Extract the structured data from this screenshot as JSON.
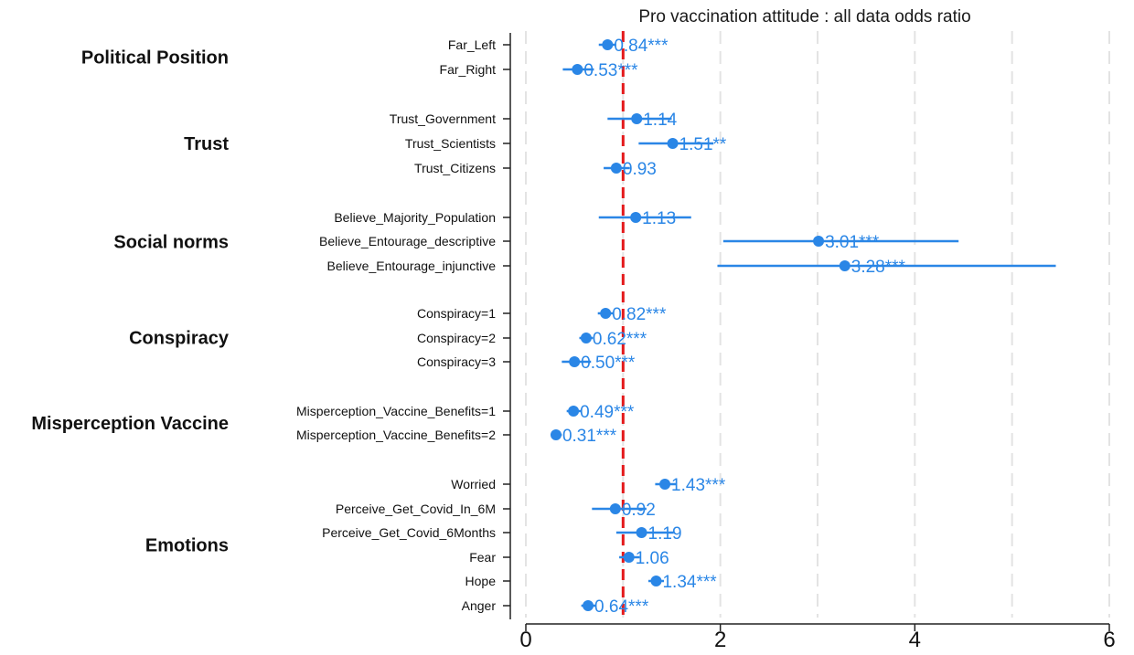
{
  "chart_data": {
    "type": "scatter",
    "title": "Pro vaccination attitude : all data odds ratio",
    "xlim": [
      0,
      6
    ],
    "xticks": [
      "0",
      "2",
      "4",
      "6"
    ],
    "xtick_values": [
      0,
      2,
      4,
      6
    ],
    "reference_line": 1,
    "grid": true,
    "colors": {
      "series": "#2a86e6",
      "reference": "#e41a1c",
      "grid": "#e3e3e3"
    },
    "groups": [
      {
        "name": "Political  Position",
        "rows": [
          0,
          1
        ]
      },
      {
        "name": "Trust",
        "rows": [
          2,
          3,
          4
        ]
      },
      {
        "name": "Social norms",
        "rows": [
          5,
          6,
          7
        ]
      },
      {
        "name": "Conspiracy",
        "rows": [
          8,
          9,
          10
        ]
      },
      {
        "name": "Misperception Vaccine",
        "rows": [
          11,
          12
        ]
      },
      {
        "name": "Emotions",
        "rows": [
          13,
          14,
          15,
          16,
          17,
          18
        ]
      }
    ],
    "rows": [
      {
        "label": "Far_Left",
        "value": 0.84,
        "ci": [
          0.75,
          0.93
        ],
        "text": "0.84***"
      },
      {
        "label": "Far_Right",
        "value": 0.53,
        "ci": [
          0.38,
          0.7
        ],
        "text": "0.53***"
      },
      {
        "label": "Trust_Government",
        "value": 1.14,
        "ci": [
          0.84,
          1.5
        ],
        "text": "1.14"
      },
      {
        "label": "Trust_Scientists",
        "value": 1.51,
        "ci": [
          1.16,
          1.93
        ],
        "text": "1.51**"
      },
      {
        "label": "Trust_Citizens",
        "value": 0.93,
        "ci": [
          0.8,
          1.07
        ],
        "text": "0.93"
      },
      {
        "label": "Believe_Majority_Population",
        "value": 1.13,
        "ci": [
          0.75,
          1.7
        ],
        "text": "1.13"
      },
      {
        "label": "Believe_Entourage_descriptive",
        "value": 3.01,
        "ci": [
          2.03,
          4.45
        ],
        "text": "3.01***"
      },
      {
        "label": "Believe_Entourage_injunctive",
        "value": 3.28,
        "ci": [
          1.97,
          5.45
        ],
        "text": "3.28***"
      },
      {
        "label": "Conspiracy=1",
        "value": 0.82,
        "ci": [
          0.74,
          0.9
        ],
        "text": "0.82***"
      },
      {
        "label": "Conspiracy=2",
        "value": 0.62,
        "ci": [
          0.55,
          0.69
        ],
        "text": "0.62***"
      },
      {
        "label": "Conspiracy=3",
        "value": 0.5,
        "ci": [
          0.37,
          0.67
        ],
        "text": "0.50***"
      },
      {
        "label": "Misperception_Vaccine_Benefits=1",
        "value": 0.49,
        "ci": [
          0.42,
          0.57
        ],
        "text": "0.49***"
      },
      {
        "label": "Misperception_Vaccine_Benefits=2",
        "value": 0.31,
        "ci": [
          0.26,
          0.37
        ],
        "text": "0.31***"
      },
      {
        "label": "Worried",
        "value": 1.43,
        "ci": [
          1.33,
          1.55
        ],
        "text": "1.43***"
      },
      {
        "label": "Perceive_Get_Covid_In_6M",
        "value": 0.92,
        "ci": [
          0.68,
          1.24
        ],
        "text": "0.92"
      },
      {
        "label": "Perceive_Get_Covid_6Months",
        "value": 1.19,
        "ci": [
          0.93,
          1.52
        ],
        "text": "1.19"
      },
      {
        "label": "Fear",
        "value": 1.06,
        "ci": [
          0.96,
          1.17
        ],
        "text": "1.06"
      },
      {
        "label": "Hope",
        "value": 1.34,
        "ci": [
          1.26,
          1.42
        ],
        "text": "1.34***"
      },
      {
        "label": "Anger",
        "value": 0.64,
        "ci": [
          0.57,
          0.72
        ],
        "text": "0.64***"
      }
    ]
  }
}
